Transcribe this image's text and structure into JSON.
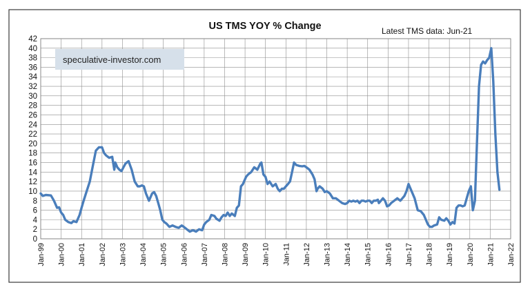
{
  "chart_data": {
    "type": "line",
    "title": "US TMS YOY % Change",
    "subtitle": "Latest TMS  data: Jun-21",
    "watermark": "speculative-investor.com",
    "xlabel": "",
    "ylabel": "",
    "ylim": [
      0,
      42
    ],
    "yticks": [
      "0",
      "2",
      "4",
      "6",
      "8",
      "10",
      "12",
      "14",
      "16",
      "18",
      "20",
      "22",
      "24",
      "26",
      "28",
      "30",
      "32",
      "34",
      "36",
      "38",
      "40",
      "42"
    ],
    "xlim": [
      1999.0,
      2022.0
    ],
    "xticks": [
      "Jan-99",
      "Jan-00",
      "Jan-01",
      "Jan-02",
      "Jan-03",
      "Jan-04",
      "Jan-05",
      "Jan-06",
      "Jan-07",
      "Jan-08",
      "Jan-09",
      "Jan-10",
      "Jan-11",
      "Jan-12",
      "Jan-13",
      "Jan-14",
      "Jan-15",
      "Jan-16",
      "Jan-17",
      "Jan-18",
      "Jan-19",
      "Jan-20",
      "Jan-21",
      "Jan-22"
    ],
    "grid": true,
    "color": "#4a7ebb",
    "series": [
      {
        "name": "US TMS YOY % Change",
        "x": [
          1999.0,
          1999.1,
          1999.25,
          1999.5,
          1999.65,
          1999.8,
          1999.9,
          2000.0,
          2000.1,
          2000.2,
          2000.35,
          2000.5,
          2000.6,
          2000.75,
          2000.9,
          2001.0,
          2001.1,
          2001.25,
          2001.4,
          2001.55,
          2001.7,
          2001.85,
          2002.0,
          2002.1,
          2002.2,
          2002.35,
          2002.5,
          2002.6,
          2002.65,
          2002.75,
          2002.85,
          2002.95,
          2003.05,
          2003.15,
          2003.3,
          2003.45,
          2003.6,
          2003.75,
          2003.85,
          2003.95,
          2004.05,
          2004.15,
          2004.3,
          2004.45,
          2004.55,
          2004.65,
          2004.75,
          2004.85,
          2004.95,
          2005.05,
          2005.15,
          2005.3,
          2005.45,
          2005.6,
          2005.75,
          2005.9,
          2006.0,
          2006.15,
          2006.3,
          2006.45,
          2006.6,
          2006.75,
          2006.9,
          2007.0,
          2007.1,
          2007.25,
          2007.35,
          2007.5,
          2007.6,
          2007.75,
          2007.85,
          2007.95,
          2008.05,
          2008.15,
          2008.25,
          2008.35,
          2008.5,
          2008.6,
          2008.7,
          2008.8,
          2008.9,
          2008.95,
          2009.05,
          2009.15,
          2009.3,
          2009.45,
          2009.6,
          2009.75,
          2009.8,
          2009.9,
          2010.0,
          2010.1,
          2010.2,
          2010.35,
          2010.5,
          2010.6,
          2010.7,
          2010.8,
          2010.9,
          2011.0,
          2011.1,
          2011.2,
          2011.3,
          2011.4,
          2011.5,
          2011.65,
          2011.8,
          2011.9,
          2012.0,
          2012.15,
          2012.3,
          2012.4,
          2012.5,
          2012.55,
          2012.65,
          2012.8,
          2012.9,
          2013.0,
          2013.15,
          2013.3,
          2013.45,
          2013.6,
          2013.75,
          2013.9,
          2014.0,
          2014.1,
          2014.2,
          2014.3,
          2014.4,
          2014.5,
          2014.6,
          2014.7,
          2014.8,
          2014.9,
          2015.0,
          2015.1,
          2015.2,
          2015.3,
          2015.4,
          2015.5,
          2015.55,
          2015.65,
          2015.75,
          2015.85,
          2015.95,
          2016.05,
          2016.15,
          2016.3,
          2016.45,
          2016.6,
          2016.7,
          2016.8,
          2016.9,
          2017.0,
          2017.15,
          2017.3,
          2017.45,
          2017.6,
          2017.75,
          2017.85,
          2017.95,
          2018.05,
          2018.15,
          2018.25,
          2018.4,
          2018.5,
          2018.6,
          2018.75,
          2018.85,
          2018.95,
          2019.05,
          2019.15,
          2019.25,
          2019.35,
          2019.45,
          2019.55,
          2019.65,
          2019.75,
          2019.85,
          2019.95,
          2020.05,
          2020.15,
          2020.25,
          2020.35,
          2020.45,
          2020.55,
          2020.65,
          2020.75,
          2020.85,
          2020.95,
          2021.05,
          2021.15,
          2021.25,
          2021.35,
          2021.45
        ],
        "values": [
          9.5,
          9.0,
          9.2,
          9.1,
          8.0,
          6.5,
          6.6,
          5.5,
          5.0,
          4.0,
          3.5,
          3.3,
          3.7,
          3.5,
          5.0,
          6.5,
          8.0,
          10.0,
          12.0,
          15.3,
          18.5,
          19.2,
          19.2,
          18.0,
          17.5,
          17.0,
          17.2,
          14.5,
          16.0,
          15.0,
          14.5,
          14.2,
          15.0,
          15.8,
          16.3,
          14.5,
          12.0,
          11.0,
          11.0,
          11.2,
          11.0,
          9.5,
          8.0,
          9.5,
          9.8,
          9.0,
          7.5,
          6.0,
          4.0,
          3.5,
          3.2,
          2.5,
          2.8,
          2.5,
          2.3,
          2.8,
          2.5,
          2.0,
          1.5,
          1.8,
          1.5,
          2.0,
          1.8,
          3.0,
          3.5,
          4.0,
          5.0,
          4.8,
          4.2,
          3.8,
          4.5,
          5.0,
          4.8,
          5.5,
          4.8,
          5.3,
          4.8,
          6.5,
          7.0,
          11.0,
          11.5,
          12.0,
          13.0,
          13.5,
          14.0,
          15.0,
          14.5,
          15.8,
          16.0,
          13.5,
          13.0,
          11.5,
          12.0,
          11.0,
          11.5,
          10.5,
          10.0,
          10.5,
          10.5,
          11.0,
          11.5,
          12.0,
          14.0,
          16.0,
          15.5,
          15.3,
          15.2,
          15.3,
          15.0,
          14.5,
          13.5,
          12.5,
          10.0,
          10.5,
          11.0,
          10.5,
          9.8,
          10.0,
          9.5,
          8.5,
          8.5,
          8.0,
          7.5,
          7.3,
          7.5,
          8.0,
          7.8,
          8.0,
          7.8,
          8.0,
          7.5,
          8.0,
          8.0,
          7.8,
          8.0,
          8.0,
          7.5,
          8.0,
          8.0,
          8.2,
          7.5,
          8.0,
          8.5,
          8.0,
          6.8,
          7.0,
          7.5,
          8.0,
          8.5,
          8.0,
          8.5,
          9.0,
          10.0,
          11.5,
          10.0,
          8.5,
          6.0,
          5.8,
          5.0,
          4.0,
          3.0,
          2.5,
          2.5,
          2.8,
          3.0,
          4.5,
          4.0,
          3.8,
          4.3,
          3.8,
          3.0,
          3.5,
          3.2,
          6.5,
          7.0,
          7.0,
          6.8,
          7.0,
          8.5,
          10.0,
          11.0,
          6.0,
          8.0,
          20.0,
          32.0,
          36.5,
          37.2,
          36.8,
          37.5,
          38.0,
          40.0,
          33.0,
          22.0,
          14.0,
          10.3
        ]
      }
    ]
  }
}
